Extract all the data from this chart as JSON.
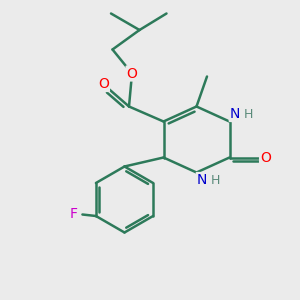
{
  "background_color": "#ebebeb",
  "bond_color": "#2d7a5a",
  "bond_width": 1.8,
  "atom_colors": {
    "O": "#ff0000",
    "N": "#0000cc",
    "F": "#cc00cc",
    "H": "#5a8a7a",
    "C": "#2d7a5a"
  },
  "font_size": 10,
  "fig_size": [
    3.0,
    3.0
  ],
  "dpi": 100
}
